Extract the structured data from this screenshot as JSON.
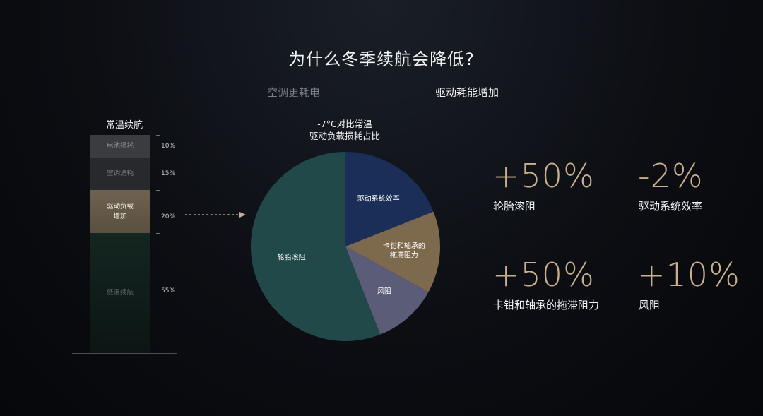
{
  "title": "为什么冬季续航会降低?",
  "tabs": [
    {
      "label": "空调更耗电",
      "active": false
    },
    {
      "label": "驱动耗能增加",
      "active": true
    }
  ],
  "stack": {
    "title": "常温续航",
    "segments": [
      {
        "label": "电池损耗",
        "percent": "10%"
      },
      {
        "label": "空调消耗",
        "percent": "15%"
      },
      {
        "label": "驱动负载\n增加",
        "percent": "20%"
      },
      {
        "label": "低温续航",
        "percent": "55%"
      }
    ]
  },
  "chart_data": {
    "type": "pie",
    "title": "-7°C对比常温\n驱动负载损耗占比",
    "start_angle_deg": 0,
    "slices": [
      {
        "label": "驱动系统效率",
        "value": 19,
        "color": "#1b2e58"
      },
      {
        "label": "卡钳和轴承的\n拖滞阻力",
        "value": 14,
        "color": "#7d6a4d"
      },
      {
        "label": "风阻",
        "value": 11,
        "color": "#5a5c78"
      },
      {
        "label": "轮胎滚阻",
        "value": 56,
        "color": "#22494a"
      }
    ]
  },
  "stats": [
    {
      "value": "+50%",
      "label": "轮胎滚阻"
    },
    {
      "value": "-2%",
      "label": "驱动系统效率"
    },
    {
      "value": "+50%",
      "label": "卡钳和轴承的拖滞阻力"
    },
    {
      "value": "+10%",
      "label": "风阻"
    }
  ],
  "colors": {
    "accent": "#cbb08c",
    "drive_segment": "#6e624f"
  }
}
